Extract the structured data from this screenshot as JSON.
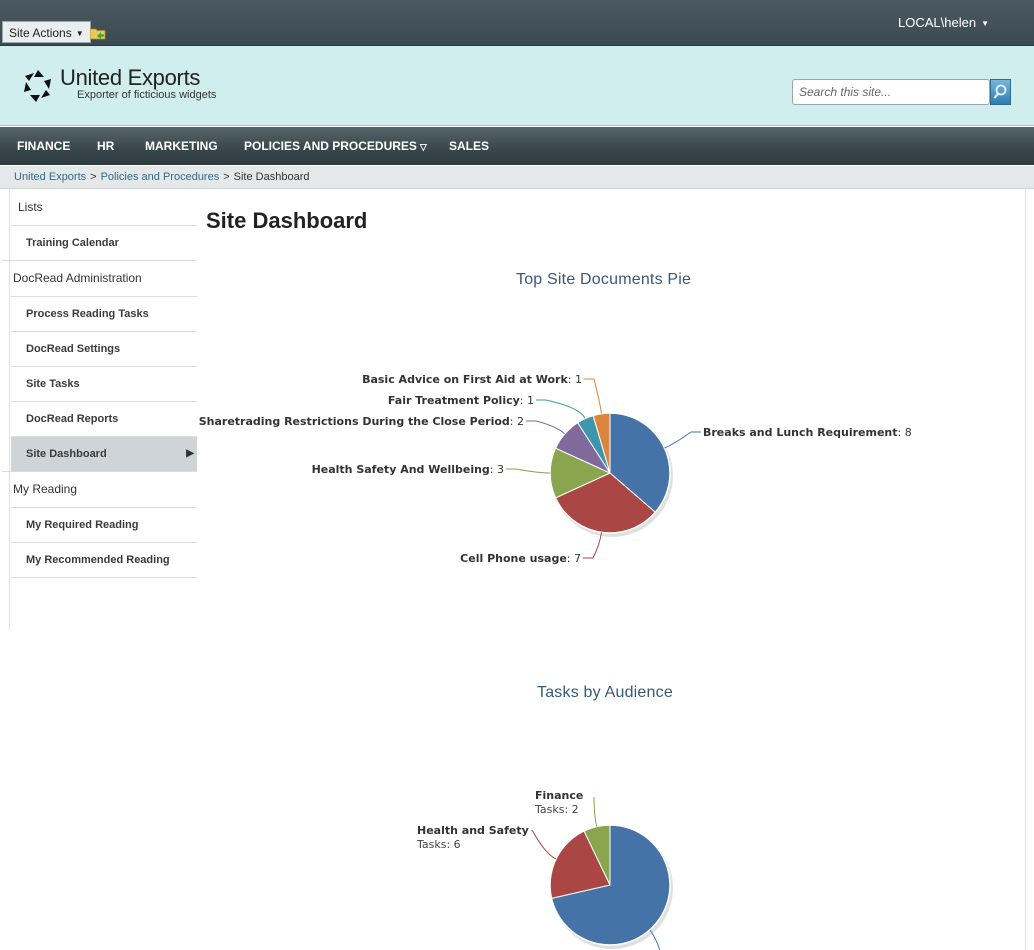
{
  "ribbon": {
    "site_actions": "Site Actions",
    "user": "LOCAL\\helen"
  },
  "header": {
    "site_title": "United Exports",
    "site_description": "Exporter of ficticious widgets",
    "search_placeholder": "Search this site..."
  },
  "nav": {
    "items": [
      "FINANCE",
      "HR",
      "MARKETING",
      "POLICIES AND PROCEDURES",
      "SALES"
    ]
  },
  "breadcrumb": [
    "United Exports",
    "Policies and Procedures",
    "Site Dashboard"
  ],
  "quicklaunch": {
    "lists_header": "Lists",
    "lists_items": [
      "Training Calendar"
    ],
    "docread_header": "DocRead Administration",
    "docread_items": [
      "Process Reading Tasks",
      "DocRead Settings",
      "Site Tasks",
      "DocRead Reports",
      "Site Dashboard"
    ],
    "reading_header": "My Reading",
    "reading_items": [
      "My Required Reading",
      "My Recommended Reading"
    ],
    "selected": "Site Dashboard"
  },
  "page_title": "Site Dashboard",
  "chart_data": [
    {
      "type": "pie",
      "title": "Top Site Documents Pie",
      "series": [
        {
          "categories": [
            "Breaks and Lunch Requirement",
            "Cell Phone usage",
            "Health Safety And Wellbeing",
            "Sharetrading Restrictions During the Close Period",
            "Fair Treatment Policy",
            "Basic Advice on First Aid at Work"
          ],
          "values": [
            8,
            7,
            3,
            2,
            1,
            1
          ]
        }
      ],
      "colors": [
        "#4572a7",
        "#aa4643",
        "#89a54e",
        "#80699b",
        "#3d96ae",
        "#db843d"
      ]
    },
    {
      "type": "pie",
      "title": "Tasks by Audience",
      "series": [
        {
          "categories": [
            "Finance",
            "Health and Safety"
          ],
          "values": [
            2,
            6
          ],
          "value_prefix": "Tasks: "
        }
      ],
      "colors": [
        "#89a54e",
        "#aa4643",
        "#4572a7"
      ]
    }
  ]
}
